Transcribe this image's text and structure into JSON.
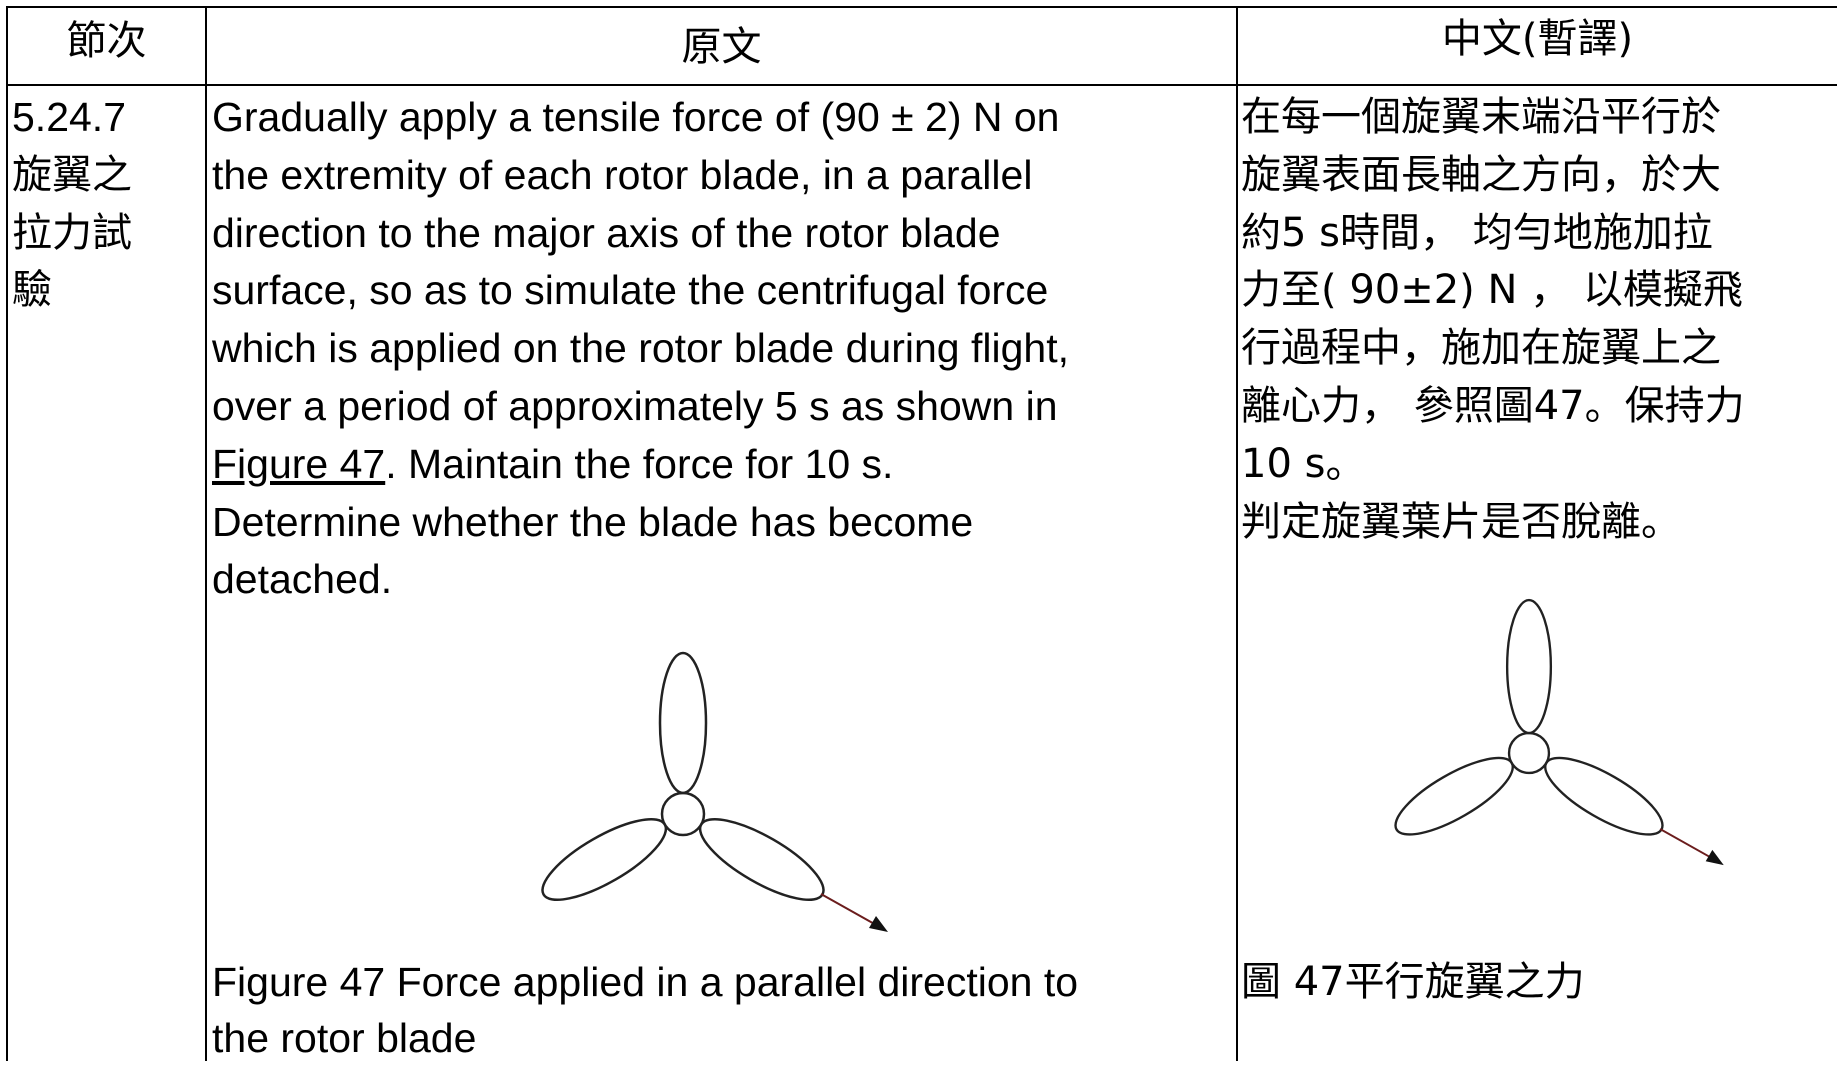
{
  "table": {
    "header": [
      "節次",
      "原文",
      "中文(暫譯)"
    ],
    "row": {
      "section": [
        "5.24.7",
        "旋翼之",
        "拉力試",
        "驗"
      ],
      "original": [
        "Gradually apply a tensile force of (90 ± 2) N on",
        "the extremity of each rotor blade, in a parallel",
        "direction to the major axis of the rotor blade",
        "surface, so as to simulate the centrifugal force",
        "which is applied on the rotor blade during flight,",
        "over a period of approximately 5 s as shown in",
        {
          "link": "Figure 47",
          "text": ". Maintain the force for 10 s."
        },
        "Determine whether the blade has become",
        "detached."
      ],
      "original_caption": [
        "Figure 47 Force applied in a parallel direction to",
        "the rotor blade"
      ],
      "translation": [
        "在每一個旋翼末端沿平行於",
        "旋翼表面長軸之方向，於大",
        "約5 s時間， 均勻地施加拉",
        "力至( 90±2) N ， 以模擬飛",
        "行過程中，施加在旋翼上之",
        "離心力， 參照圖47。保持力",
        "10 s。",
        "判定旋翼葉片是否脫離。"
      ],
      "translation_caption": "圖 47平行旋翼之力"
    }
  }
}
